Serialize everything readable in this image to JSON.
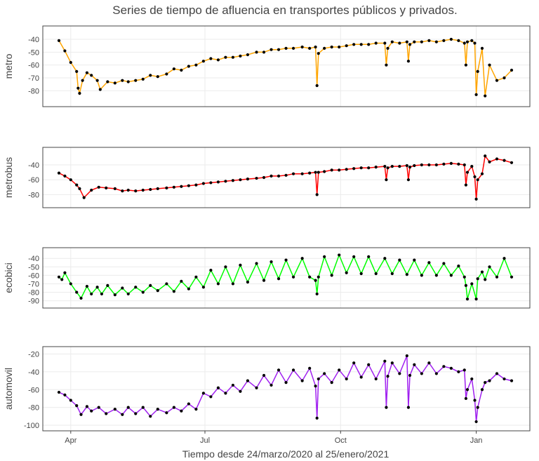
{
  "chart_data": {
    "type": "line",
    "title": "Series de tiempo de afluencia en transportes públicos y privados.",
    "xlabel": "Tiempo desde 24/marzo/2020 al 25/enero/2021",
    "x_range": [
      "2020-03-24",
      "2021-01-25"
    ],
    "x_ticks": [
      {
        "date": "2020-04-01",
        "label": "Apr"
      },
      {
        "date": "2020-07-01",
        "label": "Jul"
      },
      {
        "date": "2020-10-01",
        "label": "Oct"
      },
      {
        "date": "2021-01-01",
        "label": "Jan"
      }
    ],
    "grid": true,
    "marker_color": "#000000",
    "panels": [
      {
        "ylabel": "metro",
        "color": "#FFA500",
        "ylim": [
          -88,
          -34
        ],
        "yticks": [
          -40,
          -50,
          -60,
          -70,
          -80
        ],
        "x": [
          "2020-03-24",
          "2020-03-28",
          "2020-04-01",
          "2020-04-05",
          "2020-04-06",
          "2020-04-07",
          "2020-04-09",
          "2020-04-12",
          "2020-04-15",
          "2020-04-19",
          "2020-04-21",
          "2020-04-26",
          "2020-05-01",
          "2020-05-06",
          "2020-05-10",
          "2020-05-15",
          "2020-05-20",
          "2020-05-25",
          "2020-05-30",
          "2020-06-05",
          "2020-06-10",
          "2020-06-15",
          "2020-06-20",
          "2020-06-25",
          "2020-06-30",
          "2020-07-05",
          "2020-07-10",
          "2020-07-15",
          "2020-07-20",
          "2020-07-25",
          "2020-07-30",
          "2020-08-05",
          "2020-08-10",
          "2020-08-15",
          "2020-08-20",
          "2020-08-25",
          "2020-08-30",
          "2020-09-05",
          "2020-09-10",
          "2020-09-14",
          "2020-09-15",
          "2020-09-16",
          "2020-09-20",
          "2020-09-25",
          "2020-09-30",
          "2020-10-05",
          "2020-10-10",
          "2020-10-15",
          "2020-10-20",
          "2020-10-25",
          "2020-10-31",
          "2020-11-01",
          "2020-11-02",
          "2020-11-05",
          "2020-11-10",
          "2020-11-15",
          "2020-11-16",
          "2020-11-17",
          "2020-11-20",
          "2020-11-25",
          "2020-11-30",
          "2020-12-05",
          "2020-12-10",
          "2020-12-15",
          "2020-12-20",
          "2020-12-24",
          "2020-12-25",
          "2020-12-26",
          "2020-12-29",
          "2020-12-31",
          "2021-01-01",
          "2021-01-02",
          "2021-01-05",
          "2021-01-07",
          "2021-01-10",
          "2021-01-15",
          "2021-01-20",
          "2021-01-25"
        ],
        "values": [
          -41,
          -49,
          -58,
          -65,
          -78,
          -82,
          -72,
          -66,
          -68,
          -72,
          -79,
          -73,
          -74,
          -72,
          -73,
          -72,
          -71,
          -68,
          -69,
          -67,
          -63,
          -64,
          -61,
          -60,
          -57,
          -55,
          -56,
          -54,
          -54,
          -53,
          -52,
          -50,
          -50,
          -48,
          -48,
          -47,
          -47,
          -46,
          -47,
          -46,
          -76,
          -51,
          -47,
          -46,
          -46,
          -45,
          -44,
          -44,
          -44,
          -43,
          -43,
          -60,
          -47,
          -42,
          -43,
          -42,
          -57,
          -44,
          -42,
          -42,
          -41,
          -42,
          -41,
          -40,
          -41,
          -43,
          -60,
          -42,
          -41,
          -43,
          -83,
          -65,
          -47,
          -84,
          -60,
          -72,
          -70,
          -64
        ]
      },
      {
        "ylabel": "metrobus",
        "color": "#FF0000",
        "ylim": [
          -90,
          -24
        ],
        "yticks": [
          -40,
          -60,
          -80
        ],
        "x": [
          "2020-03-24",
          "2020-03-28",
          "2020-04-01",
          "2020-04-05",
          "2020-04-07",
          "2020-04-10",
          "2020-04-15",
          "2020-04-20",
          "2020-04-25",
          "2020-05-01",
          "2020-05-06",
          "2020-05-10",
          "2020-05-15",
          "2020-05-20",
          "2020-05-25",
          "2020-05-30",
          "2020-06-05",
          "2020-06-10",
          "2020-06-15",
          "2020-06-20",
          "2020-06-25",
          "2020-06-30",
          "2020-07-05",
          "2020-07-10",
          "2020-07-15",
          "2020-07-20",
          "2020-07-25",
          "2020-07-30",
          "2020-08-05",
          "2020-08-10",
          "2020-08-15",
          "2020-08-20",
          "2020-08-25",
          "2020-08-30",
          "2020-09-05",
          "2020-09-10",
          "2020-09-14",
          "2020-09-15",
          "2020-09-16",
          "2020-09-20",
          "2020-09-25",
          "2020-09-30",
          "2020-10-05",
          "2020-10-10",
          "2020-10-15",
          "2020-10-20",
          "2020-10-25",
          "2020-10-31",
          "2020-11-01",
          "2020-11-02",
          "2020-11-05",
          "2020-11-10",
          "2020-11-15",
          "2020-11-16",
          "2020-11-17",
          "2020-11-20",
          "2020-11-25",
          "2020-11-30",
          "2020-12-05",
          "2020-12-10",
          "2020-12-15",
          "2020-12-20",
          "2020-12-24",
          "2020-12-25",
          "2020-12-26",
          "2020-12-29",
          "2020-12-31",
          "2021-01-01",
          "2021-01-02",
          "2021-01-05",
          "2021-01-07",
          "2021-01-10",
          "2021-01-15",
          "2021-01-20",
          "2021-01-25"
        ],
        "values": [
          -51,
          -55,
          -60,
          -67,
          -72,
          -84,
          -74,
          -70,
          -71,
          -72,
          -75,
          -74,
          -75,
          -74,
          -73,
          -72,
          -71,
          -70,
          -69,
          -68,
          -67,
          -65,
          -64,
          -63,
          -62,
          -61,
          -60,
          -59,
          -58,
          -57,
          -55,
          -55,
          -54,
          -52,
          -52,
          -51,
          -50,
          -80,
          -50,
          -49,
          -47,
          -47,
          -46,
          -45,
          -44,
          -44,
          -43,
          -42,
          -60,
          -44,
          -42,
          -42,
          -41,
          -60,
          -43,
          -41,
          -40,
          -40,
          -40,
          -39,
          -38,
          -39,
          -40,
          -67,
          -50,
          -42,
          -56,
          -86,
          -60,
          -52,
          -28,
          -36,
          -32,
          -34,
          -37
        ]
      },
      {
        "ylabel": "ecobici",
        "color": "#00FF00",
        "ylim": [
          -92,
          -34
        ],
        "yticks": [
          -40,
          -50,
          -60,
          -70,
          -80,
          -90
        ],
        "x": [
          "2020-03-24",
          "2020-03-26",
          "2020-03-28",
          "2020-04-01",
          "2020-04-05",
          "2020-04-08",
          "2020-04-12",
          "2020-04-15",
          "2020-04-19",
          "2020-04-22",
          "2020-04-26",
          "2020-05-01",
          "2020-05-06",
          "2020-05-10",
          "2020-05-15",
          "2020-05-20",
          "2020-05-25",
          "2020-05-30",
          "2020-06-05",
          "2020-06-10",
          "2020-06-15",
          "2020-06-20",
          "2020-06-25",
          "2020-06-30",
          "2020-07-05",
          "2020-07-10",
          "2020-07-15",
          "2020-07-20",
          "2020-07-25",
          "2020-07-30",
          "2020-08-05",
          "2020-08-10",
          "2020-08-15",
          "2020-08-20",
          "2020-08-25",
          "2020-08-30",
          "2020-09-05",
          "2020-09-10",
          "2020-09-14",
          "2020-09-15",
          "2020-09-16",
          "2020-09-20",
          "2020-09-25",
          "2020-09-30",
          "2020-10-05",
          "2020-10-10",
          "2020-10-15",
          "2020-10-20",
          "2020-10-25",
          "2020-10-31",
          "2020-11-05",
          "2020-11-10",
          "2020-11-15",
          "2020-11-20",
          "2020-11-25",
          "2020-11-30",
          "2020-12-05",
          "2020-12-10",
          "2020-12-15",
          "2020-12-20",
          "2020-12-24",
          "2020-12-25",
          "2020-12-26",
          "2020-12-29",
          "2021-01-01",
          "2021-01-02",
          "2021-01-05",
          "2021-01-07",
          "2021-01-10",
          "2021-01-15",
          "2021-01-20",
          "2021-01-25"
        ],
        "values": [
          -62,
          -65,
          -57,
          -70,
          -80,
          -87,
          -73,
          -82,
          -74,
          -82,
          -72,
          -83,
          -75,
          -82,
          -74,
          -80,
          -72,
          -78,
          -70,
          -79,
          -67,
          -76,
          -62,
          -74,
          -54,
          -70,
          -50,
          -70,
          -48,
          -68,
          -46,
          -66,
          -44,
          -64,
          -42,
          -62,
          -40,
          -62,
          -66,
          -82,
          -62,
          -38,
          -60,
          -36,
          -57,
          -38,
          -58,
          -38,
          -58,
          -40,
          -58,
          -42,
          -59,
          -42,
          -60,
          -45,
          -60,
          -46,
          -60,
          -49,
          -62,
          -72,
          -88,
          -70,
          -88,
          -64,
          -56,
          -65,
          -50,
          -62,
          -40,
          -62
        ]
      },
      {
        "ylabel": "automovil",
        "color": "#A020F0",
        "ylim": [
          -100,
          -18
        ],
        "yticks": [
          -20,
          -40,
          -60,
          -80,
          -100
        ],
        "x": [
          "2020-03-24",
          "2020-03-28",
          "2020-04-01",
          "2020-04-05",
          "2020-04-08",
          "2020-04-12",
          "2020-04-15",
          "2020-04-20",
          "2020-04-25",
          "2020-05-01",
          "2020-05-06",
          "2020-05-10",
          "2020-05-15",
          "2020-05-20",
          "2020-05-25",
          "2020-05-30",
          "2020-06-05",
          "2020-06-10",
          "2020-06-15",
          "2020-06-20",
          "2020-06-25",
          "2020-06-30",
          "2020-07-05",
          "2020-07-10",
          "2020-07-15",
          "2020-07-20",
          "2020-07-25",
          "2020-07-30",
          "2020-08-05",
          "2020-08-10",
          "2020-08-15",
          "2020-08-20",
          "2020-08-25",
          "2020-08-30",
          "2020-09-05",
          "2020-09-10",
          "2020-09-14",
          "2020-09-15",
          "2020-09-16",
          "2020-09-20",
          "2020-09-25",
          "2020-09-30",
          "2020-10-05",
          "2020-10-10",
          "2020-10-15",
          "2020-10-20",
          "2020-10-25",
          "2020-10-31",
          "2020-11-01",
          "2020-11-02",
          "2020-11-05",
          "2020-11-10",
          "2020-11-15",
          "2020-11-16",
          "2020-11-17",
          "2020-11-20",
          "2020-11-25",
          "2020-11-30",
          "2020-12-05",
          "2020-12-10",
          "2020-12-15",
          "2020-12-20",
          "2020-12-24",
          "2020-12-25",
          "2020-12-26",
          "2020-12-29",
          "2020-12-31",
          "2021-01-01",
          "2021-01-02",
          "2021-01-05",
          "2021-01-07",
          "2021-01-10",
          "2021-01-15",
          "2021-01-20",
          "2021-01-25"
        ],
        "values": [
          -63,
          -66,
          -72,
          -78,
          -88,
          -79,
          -84,
          -80,
          -87,
          -82,
          -88,
          -80,
          -87,
          -80,
          -90,
          -82,
          -86,
          -80,
          -84,
          -76,
          -82,
          -64,
          -68,
          -58,
          -64,
          -55,
          -62,
          -50,
          -58,
          -44,
          -55,
          -38,
          -52,
          -38,
          -50,
          -36,
          -56,
          -92,
          -48,
          -42,
          -52,
          -38,
          -48,
          -30,
          -46,
          -32,
          -48,
          -28,
          -80,
          -45,
          -30,
          -42,
          -22,
          -80,
          -44,
          -32,
          -42,
          -30,
          -42,
          -34,
          -36,
          -40,
          -38,
          -70,
          -60,
          -48,
          -72,
          -96,
          -80,
          -60,
          -52,
          -50,
          -42,
          -48,
          -50
        ]
      }
    ]
  }
}
